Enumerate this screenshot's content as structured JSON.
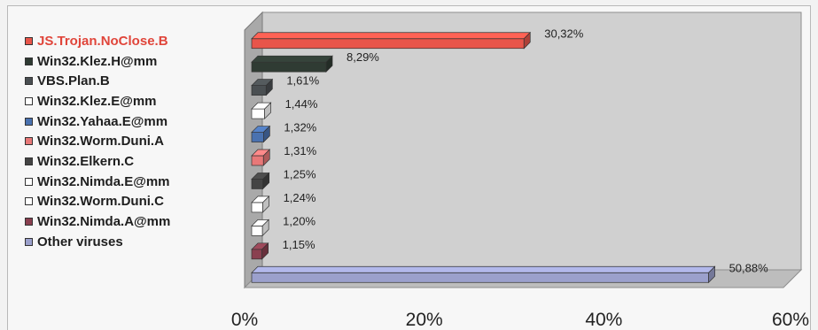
{
  "chart_data": {
    "type": "bar",
    "orientation": "horizontal",
    "title": "",
    "xlabel": "",
    "ylabel": "",
    "xlim": [
      0,
      60
    ],
    "x_ticks": [
      "0%",
      "20%",
      "40%",
      "60%"
    ],
    "legend_position": "left",
    "style": "3d",
    "categories": [
      "JS.Trojan.NoClose.B",
      "Win32.Klez.H@mm",
      "VBS.Plan.B",
      "Win32.Klez.E@mm",
      "Win32.Yahaa.E@mm",
      "Win32.Worm.Duni.A",
      "Win32.Elkern.C",
      "Win32.Nimda.E@mm",
      "Win32.Worm.Duni.C",
      "Win32.Nimda.A@mm",
      "Other viruses"
    ],
    "values": [
      30.32,
      8.29,
      1.61,
      1.44,
      1.32,
      1.31,
      1.25,
      1.24,
      1.2,
      1.15,
      50.88
    ],
    "value_labels": [
      "30,32%",
      "8,29%",
      "1,61%",
      "1,44%",
      "1,32%",
      "1,31%",
      "1,25%",
      "1,24%",
      "1,20%",
      "1,15%",
      "50,88%"
    ],
    "colors": [
      "#e8554a",
      "#2f3b33",
      "#4a4f52",
      "#ffffff",
      "#4a72b0",
      "#e87878",
      "#444444",
      "#ffffff",
      "#ffffff",
      "#8a4050",
      "#9ba0cc"
    ],
    "highlight_color": "#e0453a"
  }
}
